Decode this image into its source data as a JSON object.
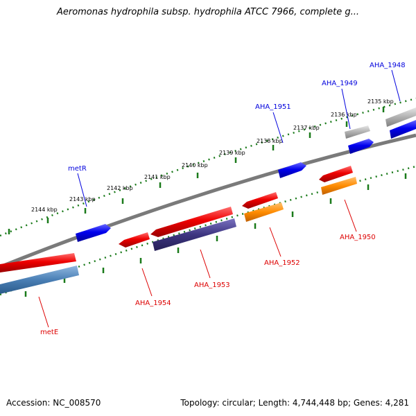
{
  "title": "Aeromonas hydrophila subsp. hydrophila ATCC 7966, complete g...",
  "footer": {
    "accession": "Accession: NC_008570",
    "summary": "Topology: circular; Length: 4,744,448 bp; Genes: 4,281"
  },
  "ticks": [
    {
      "label": "2135 kbp"
    },
    {
      "label": "2136 kbp"
    },
    {
      "label": "2137 kbp"
    },
    {
      "label": "2138 kbp"
    },
    {
      "label": "2139 kbp"
    },
    {
      "label": "2140 kbp"
    },
    {
      "label": "2141 kbp"
    },
    {
      "label": "2142 kbp"
    },
    {
      "label": "2143 kbp"
    },
    {
      "label": "2144 kbp"
    }
  ],
  "genes_forward": [
    {
      "name": "AHA_1948",
      "color": "#0000dd"
    },
    {
      "name": "AHA_1949",
      "color": "#0000dd"
    },
    {
      "name": "AHA_1951",
      "color": "#0000dd"
    },
    {
      "name": "metR",
      "color": "#0000dd"
    }
  ],
  "genes_reverse": [
    {
      "name": "AHA_1950",
      "color": "#dd0000"
    },
    {
      "name": "AHA_1952",
      "color": "#dd0000"
    },
    {
      "name": "AHA_1953",
      "color": "#dd0000"
    },
    {
      "name": "AHA_1954",
      "color": "#dd0000"
    },
    {
      "name": "metE",
      "color": "#dd0000"
    }
  ],
  "colors": {
    "backbone": "#808080",
    "tick": "#1a7a1a",
    "forward_cds": "#0000ee",
    "reverse_cds": "#ee0000",
    "forward_gene_grey": "#b0b0b0",
    "reverse_feature_orange": "#ff8c00",
    "reverse_feature_purple": "#3d3580",
    "reverse_feature_steelblue": "#4a7fb5"
  }
}
